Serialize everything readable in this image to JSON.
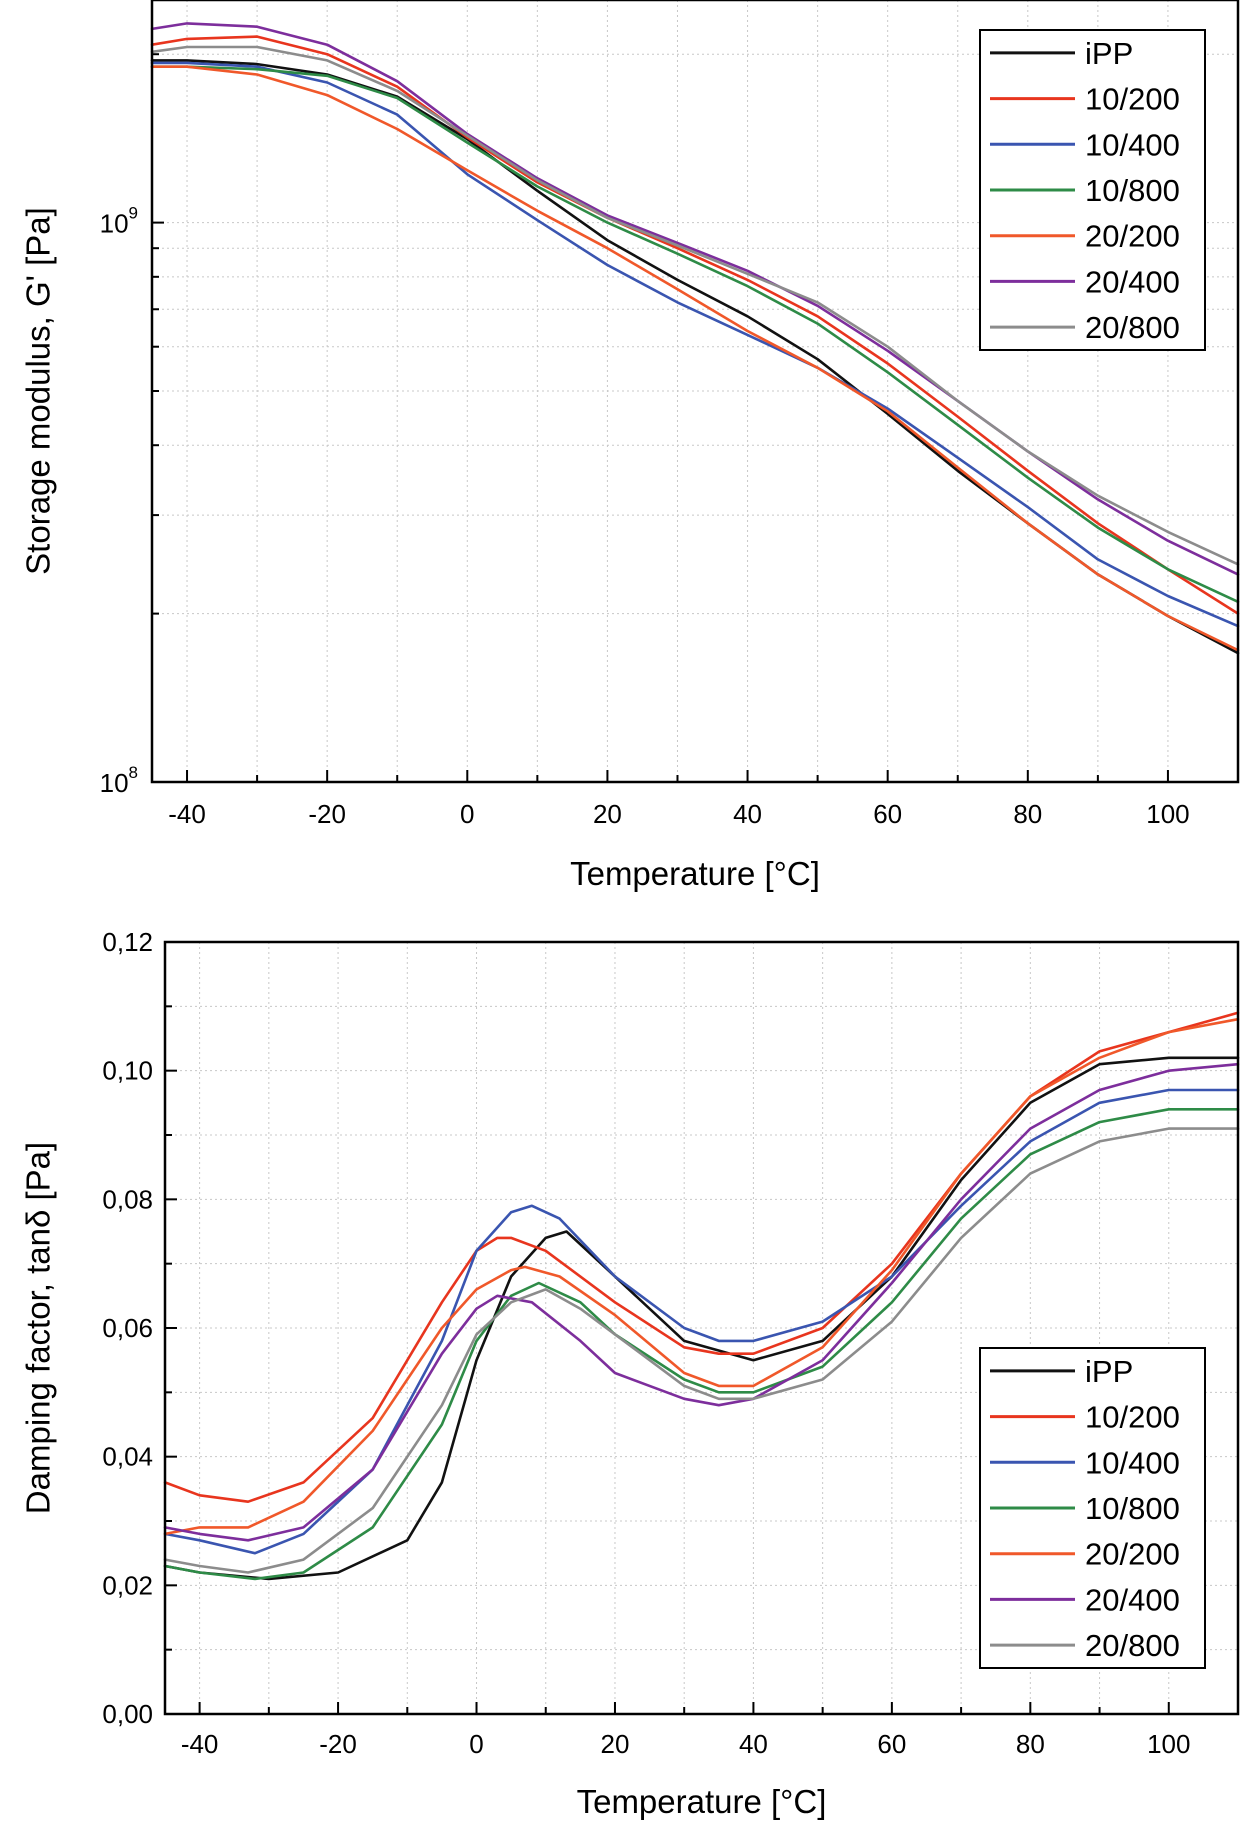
{
  "colors": {
    "iPP": "#111111",
    "10/200": "#e8351e",
    "10/400": "#3a55b0",
    "10/800": "#2e8b47",
    "20/200": "#f0582a",
    "20/400": "#7d2e9c",
    "20/800": "#8c8c8c"
  },
  "chart_data": [
    {
      "type": "line",
      "title": "",
      "xlabel": "Temperature [°C]",
      "ylabel": "Storage modulus, G' [Pa]",
      "yscale": "log",
      "xlim": [
        -45,
        110
      ],
      "ylim": [
        100000000,
        2500000000
      ],
      "x_ticks": [
        -40,
        -20,
        0,
        20,
        40,
        60,
        80,
        100
      ],
      "x_tick_labels": [
        "-40",
        "-20",
        "0",
        "20",
        "40",
        "60",
        "80",
        "100"
      ],
      "y_tick_labels": [
        {
          "base": "10",
          "exp": "8",
          "value": 100000000
        },
        {
          "base": "10",
          "exp": "9",
          "value": 1000000000
        }
      ],
      "legend": [
        "iPP",
        "10/200",
        "10/400",
        "10/800",
        "20/200",
        "20/400",
        "20/800"
      ],
      "legend_position": "top-right",
      "grid": true,
      "series": [
        {
          "name": "iPP",
          "x": [
            -45,
            -40,
            -30,
            -20,
            -10,
            0,
            10,
            20,
            30,
            40,
            50,
            60,
            70,
            80,
            90,
            100,
            110
          ],
          "y": [
            1950000000.0,
            1950000000.0,
            1920000000.0,
            1840000000.0,
            1680000000.0,
            1410000000.0,
            1140000000.0,
            930000000.0,
            790000000.0,
            680000000.0,
            570000000.0,
            455000000.0,
            360000000.0,
            290000000.0,
            235000000.0,
            198000000.0,
            170000000.0
          ]
        },
        {
          "name": "10/200",
          "x": [
            -45,
            -40,
            -30,
            -20,
            -10,
            0,
            10,
            20,
            30,
            40,
            50,
            60,
            70,
            80,
            90,
            100,
            110
          ],
          "y": [
            2080000000.0,
            2130000000.0,
            2150000000.0,
            2000000000.0,
            1750000000.0,
            1420000000.0,
            1180000000.0,
            1020000000.0,
            900000000.0,
            790000000.0,
            680000000.0,
            560000000.0,
            450000000.0,
            360000000.0,
            290000000.0,
            240000000.0,
            200000000.0
          ]
        },
        {
          "name": "10/400",
          "x": [
            -45,
            -40,
            -30,
            -20,
            -10,
            0,
            10,
            20,
            30,
            40,
            50,
            60,
            70,
            80,
            90,
            100,
            110
          ],
          "y": [
            1930000000.0,
            1930000000.0,
            1900000000.0,
            1780000000.0,
            1560000000.0,
            1220000000.0,
            1010000000.0,
            840000000.0,
            720000000.0,
            630000000.0,
            550000000.0,
            465000000.0,
            380000000.0,
            310000000.0,
            250000000.0,
            215000000.0,
            190000000.0
          ]
        },
        {
          "name": "10/800",
          "x": [
            -45,
            -40,
            -30,
            -20,
            -10,
            0,
            10,
            20,
            30,
            40,
            50,
            60,
            70,
            80,
            90,
            100,
            110
          ],
          "y": [
            1900000000.0,
            1900000000.0,
            1880000000.0,
            1830000000.0,
            1670000000.0,
            1390000000.0,
            1160000000.0,
            1000000000.0,
            880000000.0,
            770000000.0,
            660000000.0,
            540000000.0,
            435000000.0,
            350000000.0,
            285000000.0,
            240000000.0,
            210000000.0
          ]
        },
        {
          "name": "20/200",
          "x": [
            -45,
            -40,
            -30,
            -20,
            -10,
            0,
            10,
            20,
            30,
            40,
            50,
            60,
            70,
            80,
            90,
            100,
            110
          ],
          "y": [
            1900000000.0,
            1900000000.0,
            1840000000.0,
            1690000000.0,
            1470000000.0,
            1240000000.0,
            1050000000.0,
            900000000.0,
            760000000.0,
            640000000.0,
            550000000.0,
            460000000.0,
            365000000.0,
            290000000.0,
            235000000.0,
            198000000.0,
            172000000.0
          ]
        },
        {
          "name": "20/400",
          "x": [
            -45,
            -40,
            -30,
            -20,
            -10,
            0,
            10,
            20,
            30,
            40,
            50,
            60,
            70,
            80,
            90,
            100,
            110
          ],
          "y": [
            2220000000.0,
            2270000000.0,
            2240000000.0,
            2080000000.0,
            1790000000.0,
            1440000000.0,
            1200000000.0,
            1030000000.0,
            920000000.0,
            820000000.0,
            710000000.0,
            590000000.0,
            480000000.0,
            390000000.0,
            320000000.0,
            270000000.0,
            235000000.0
          ]
        },
        {
          "name": "20/800",
          "x": [
            -45,
            -40,
            -30,
            -20,
            -10,
            0,
            10,
            20,
            30,
            40,
            50,
            60,
            70,
            80,
            90,
            100,
            110
          ],
          "y": [
            2020000000.0,
            2060000000.0,
            2060000000.0,
            1950000000.0,
            1720000000.0,
            1430000000.0,
            1190000000.0,
            1020000000.0,
            910000000.0,
            810000000.0,
            720000000.0,
            600000000.0,
            480000000.0,
            390000000.0,
            325000000.0,
            280000000.0,
            245000000.0
          ]
        }
      ]
    },
    {
      "type": "line",
      "title": "",
      "xlabel": "Temperature [°C]",
      "ylabel": "Damping factor, tanδ [Pa]",
      "yscale": "linear",
      "xlim": [
        -45,
        110
      ],
      "ylim": [
        0,
        0.12
      ],
      "x_ticks": [
        -40,
        -20,
        0,
        20,
        40,
        60,
        80,
        100
      ],
      "x_tick_labels": [
        "-40",
        "-20",
        "0",
        "20",
        "40",
        "60",
        "80",
        "100"
      ],
      "y_ticks": [
        0,
        0.02,
        0.04,
        0.06,
        0.08,
        0.1,
        0.12
      ],
      "y_tick_labels": [
        "0,00",
        "0,02",
        "0,04",
        "0,06",
        "0,08",
        "0,10",
        "0,12"
      ],
      "legend": [
        "iPP",
        "10/200",
        "10/400",
        "10/800",
        "20/200",
        "20/400",
        "20/800"
      ],
      "legend_position": "bottom-right",
      "grid": true,
      "series": [
        {
          "name": "iPP",
          "x": [
            -45,
            -40,
            -30,
            -20,
            -10,
            -5,
            0,
            5,
            10,
            13,
            20,
            30,
            40,
            50,
            60,
            70,
            80,
            90,
            100,
            110
          ],
          "y": [
            0.023,
            0.022,
            0.021,
            0.022,
            0.027,
            0.036,
            0.055,
            0.068,
            0.074,
            0.075,
            0.068,
            0.058,
            0.055,
            0.058,
            0.068,
            0.083,
            0.095,
            0.101,
            0.102,
            0.102
          ]
        },
        {
          "name": "10/200",
          "x": [
            -45,
            -40,
            -33,
            -25,
            -15,
            -5,
            0,
            3,
            5,
            10,
            20,
            30,
            35,
            40,
            50,
            60,
            70,
            80,
            90,
            100,
            110
          ],
          "y": [
            0.036,
            0.034,
            0.033,
            0.036,
            0.046,
            0.064,
            0.072,
            0.074,
            0.074,
            0.072,
            0.064,
            0.057,
            0.056,
            0.056,
            0.06,
            0.07,
            0.084,
            0.096,
            0.103,
            0.106,
            0.109
          ]
        },
        {
          "name": "10/400",
          "x": [
            -45,
            -40,
            -32,
            -25,
            -15,
            -5,
            0,
            5,
            8,
            12,
            20,
            30,
            35,
            40,
            50,
            60,
            70,
            80,
            90,
            100,
            110
          ],
          "y": [
            0.028,
            0.027,
            0.025,
            0.028,
            0.038,
            0.058,
            0.072,
            0.078,
            0.079,
            0.077,
            0.068,
            0.06,
            0.058,
            0.058,
            0.061,
            0.068,
            0.079,
            0.089,
            0.095,
            0.097,
            0.097
          ]
        },
        {
          "name": "10/800",
          "x": [
            -45,
            -40,
            -32,
            -25,
            -15,
            -5,
            0,
            5,
            9,
            15,
            20,
            30,
            35,
            40,
            50,
            60,
            70,
            80,
            90,
            100,
            110
          ],
          "y": [
            0.023,
            0.022,
            0.021,
            0.022,
            0.029,
            0.045,
            0.058,
            0.065,
            0.067,
            0.064,
            0.059,
            0.052,
            0.05,
            0.05,
            0.054,
            0.064,
            0.077,
            0.087,
            0.092,
            0.094,
            0.094
          ]
        },
        {
          "name": "20/200",
          "x": [
            -45,
            -40,
            -33,
            -25,
            -15,
            -5,
            0,
            5,
            7,
            12,
            20,
            30,
            35,
            40,
            50,
            60,
            70,
            80,
            90,
            100,
            110
          ],
          "y": [
            0.028,
            0.029,
            0.029,
            0.033,
            0.044,
            0.06,
            0.066,
            0.069,
            0.0695,
            0.068,
            0.062,
            0.053,
            0.051,
            0.051,
            0.057,
            0.069,
            0.084,
            0.096,
            0.102,
            0.106,
            0.108
          ]
        },
        {
          "name": "20/400",
          "x": [
            -45,
            -40,
            -33,
            -25,
            -15,
            -5,
            0,
            3,
            8,
            15,
            20,
            30,
            35,
            40,
            50,
            60,
            70,
            80,
            90,
            100,
            110
          ],
          "y": [
            0.029,
            0.028,
            0.027,
            0.029,
            0.038,
            0.056,
            0.063,
            0.065,
            0.064,
            0.058,
            0.053,
            0.049,
            0.048,
            0.049,
            0.055,
            0.067,
            0.08,
            0.091,
            0.097,
            0.1,
            0.101
          ]
        },
        {
          "name": "20/800",
          "x": [
            -45,
            -40,
            -33,
            -25,
            -15,
            -5,
            0,
            5,
            10,
            15,
            20,
            30,
            35,
            40,
            50,
            60,
            70,
            80,
            90,
            100,
            110
          ],
          "y": [
            0.024,
            0.023,
            0.022,
            0.024,
            0.032,
            0.048,
            0.059,
            0.064,
            0.066,
            0.063,
            0.059,
            0.051,
            0.049,
            0.049,
            0.052,
            0.061,
            0.074,
            0.084,
            0.089,
            0.091,
            0.091
          ]
        }
      ]
    }
  ]
}
